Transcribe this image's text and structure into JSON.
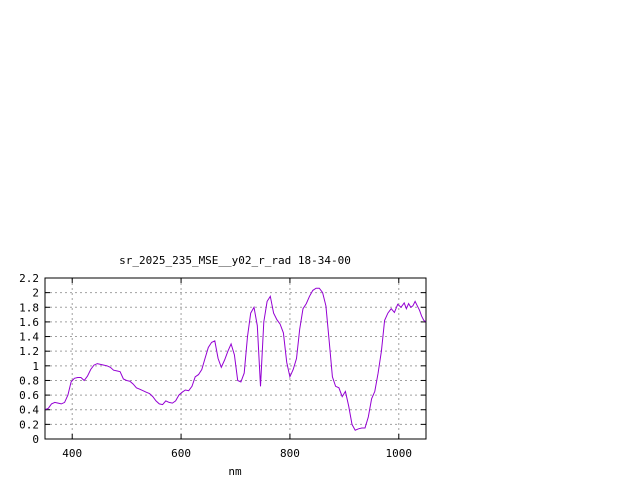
{
  "chart_data": {
    "type": "line",
    "title": "sr_2025_235_MSE__y02_r_rad 18-34-00",
    "xlabel": "nm",
    "ylabel": "",
    "xlim": [
      350,
      1050
    ],
    "ylim": [
      0,
      2.2
    ],
    "x_ticks": [
      400,
      600,
      800,
      1000
    ],
    "y_ticks": [
      0,
      0.2,
      0.4,
      0.6,
      0.8,
      1,
      1.2,
      1.4,
      1.6,
      1.8,
      2,
      2.2
    ],
    "x_tick_labels": [
      "400",
      "600",
      "800",
      "1000"
    ],
    "y_tick_labels": [
      "0",
      "0.2",
      "0.4",
      "0.6",
      "0.8",
      "1",
      "1.2",
      "1.4",
      "1.6",
      "1.8",
      "2",
      "2.2"
    ],
    "grid": true,
    "legend": "none",
    "colors": {
      "line": "#9400d3",
      "grid": "#a0a0a0",
      "axes": "#000000"
    },
    "series": [
      {
        "x": [
          350,
          356,
          362,
          368,
          374,
          380,
          386,
          392,
          398,
          404,
          410,
          416,
          422,
          428,
          434,
          440,
          446,
          452,
          458,
          464,
          470,
          476,
          482,
          488,
          494,
          500,
          506,
          512,
          518,
          524,
          530,
          536,
          542,
          548,
          554,
          560,
          566,
          572,
          578,
          584,
          590,
          596,
          602,
          608,
          614,
          620,
          626,
          632,
          638,
          644,
          650,
          656,
          662,
          668,
          674,
          680,
          686,
          692,
          698,
          704,
          710,
          716,
          722,
          728,
          734,
          740,
          746,
          752,
          758,
          764,
          770,
          776,
          782,
          788,
          794,
          800,
          806,
          812,
          818,
          824,
          830,
          836,
          842,
          848,
          854,
          860,
          866,
          872,
          878,
          884,
          890,
          896,
          902,
          908,
          914,
          920,
          926,
          932,
          938,
          944,
          950,
          956,
          962,
          968,
          974,
          980,
          986,
          992,
          998,
          1004,
          1010,
          1014,
          1018,
          1022,
          1026,
          1030,
          1034,
          1038,
          1042,
          1046,
          1050
        ],
        "values": [
          0.4,
          0.42,
          0.48,
          0.5,
          0.49,
          0.48,
          0.5,
          0.6,
          0.78,
          0.83,
          0.84,
          0.84,
          0.8,
          0.86,
          0.95,
          1.01,
          1.03,
          1.02,
          1.01,
          1.0,
          0.98,
          0.94,
          0.93,
          0.92,
          0.82,
          0.8,
          0.79,
          0.75,
          0.7,
          0.68,
          0.66,
          0.64,
          0.62,
          0.58,
          0.52,
          0.48,
          0.47,
          0.52,
          0.5,
          0.49,
          0.52,
          0.6,
          0.64,
          0.67,
          0.66,
          0.72,
          0.85,
          0.88,
          0.95,
          1.1,
          1.25,
          1.32,
          1.34,
          1.1,
          0.98,
          1.08,
          1.2,
          1.3,
          1.15,
          0.8,
          0.78,
          0.9,
          1.4,
          1.72,
          1.8,
          1.55,
          0.72,
          1.6,
          1.88,
          1.95,
          1.72,
          1.63,
          1.57,
          1.45,
          1.05,
          0.85,
          0.95,
          1.1,
          1.5,
          1.78,
          1.85,
          1.95,
          2.03,
          2.06,
          2.06,
          2.0,
          1.82,
          1.35,
          0.85,
          0.72,
          0.7,
          0.58,
          0.65,
          0.45,
          0.2,
          0.12,
          0.14,
          0.15,
          0.15,
          0.3,
          0.55,
          0.65,
          0.9,
          1.2,
          1.62,
          1.72,
          1.78,
          1.73,
          1.84,
          1.8,
          1.86,
          1.78,
          1.85,
          1.8,
          1.82,
          1.88,
          1.82,
          1.76,
          1.68,
          1.62,
          1.6
        ]
      }
    ]
  }
}
